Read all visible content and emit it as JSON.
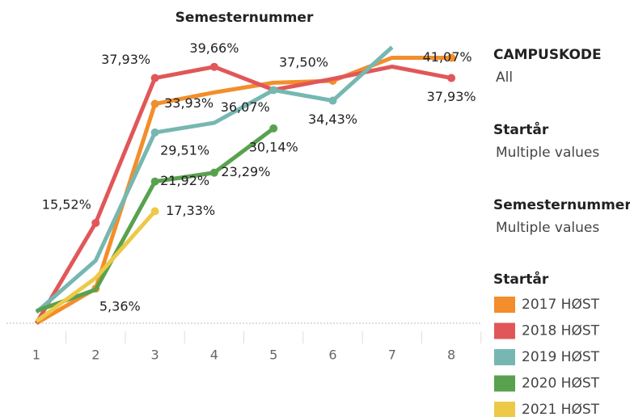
{
  "chart_data": {
    "type": "line",
    "title": "Semesternummer",
    "x": [
      "1",
      "2",
      "3",
      "4",
      "5",
      "6",
      "7",
      "8"
    ],
    "ylim": [
      0,
      45
    ],
    "series": [
      {
        "name": "2017 HØST",
        "color": "#f28e2b",
        "values": [
          0,
          5.36,
          33.93,
          35.7,
          37.2,
          37.5,
          41.07,
          41.07
        ],
        "value_labels": [
          null,
          "5,36%",
          "33,93%",
          null,
          null,
          "37,50%",
          null,
          "41,07%"
        ]
      },
      {
        "name": "2018 HØST",
        "color": "#e15759",
        "values": [
          0,
          15.52,
          37.93,
          39.66,
          36.1,
          37.8,
          39.7,
          37.93
        ],
        "value_labels": [
          null,
          "15,52%",
          "37,93%",
          "39,66%",
          null,
          null,
          null,
          "37,93%"
        ]
      },
      {
        "name": "2019 HØST",
        "color": "#76b7b2",
        "values": [
          1.7,
          9.7,
          29.51,
          31.0,
          36.07,
          34.43,
          42.7,
          null
        ],
        "value_labels": [
          null,
          null,
          "29,51%",
          null,
          "36,07%",
          "34,43%",
          null,
          null
        ]
      },
      {
        "name": "2020 HØST",
        "color": "#59a14f",
        "values": [
          1.9,
          5.2,
          21.92,
          23.29,
          30.14,
          null,
          null,
          null
        ],
        "value_labels": [
          null,
          null,
          "21,92%",
          "23,29%",
          "30,14%",
          null,
          null,
          null
        ]
      },
      {
        "name": "2021 HØST",
        "color": "#edc948",
        "values": [
          0.3,
          7.0,
          17.33,
          null,
          null,
          null,
          null,
          null
        ],
        "value_labels": [
          null,
          null,
          "17,33%",
          null,
          null,
          null,
          null,
          null
        ]
      }
    ],
    "filters": [
      {
        "title": "CAMPUSKODE",
        "value": "All"
      },
      {
        "title": "Startår",
        "value": "Multiple values"
      },
      {
        "title": "Semesternummer",
        "value": "Multiple values"
      }
    ],
    "legend_title": "Startår"
  }
}
